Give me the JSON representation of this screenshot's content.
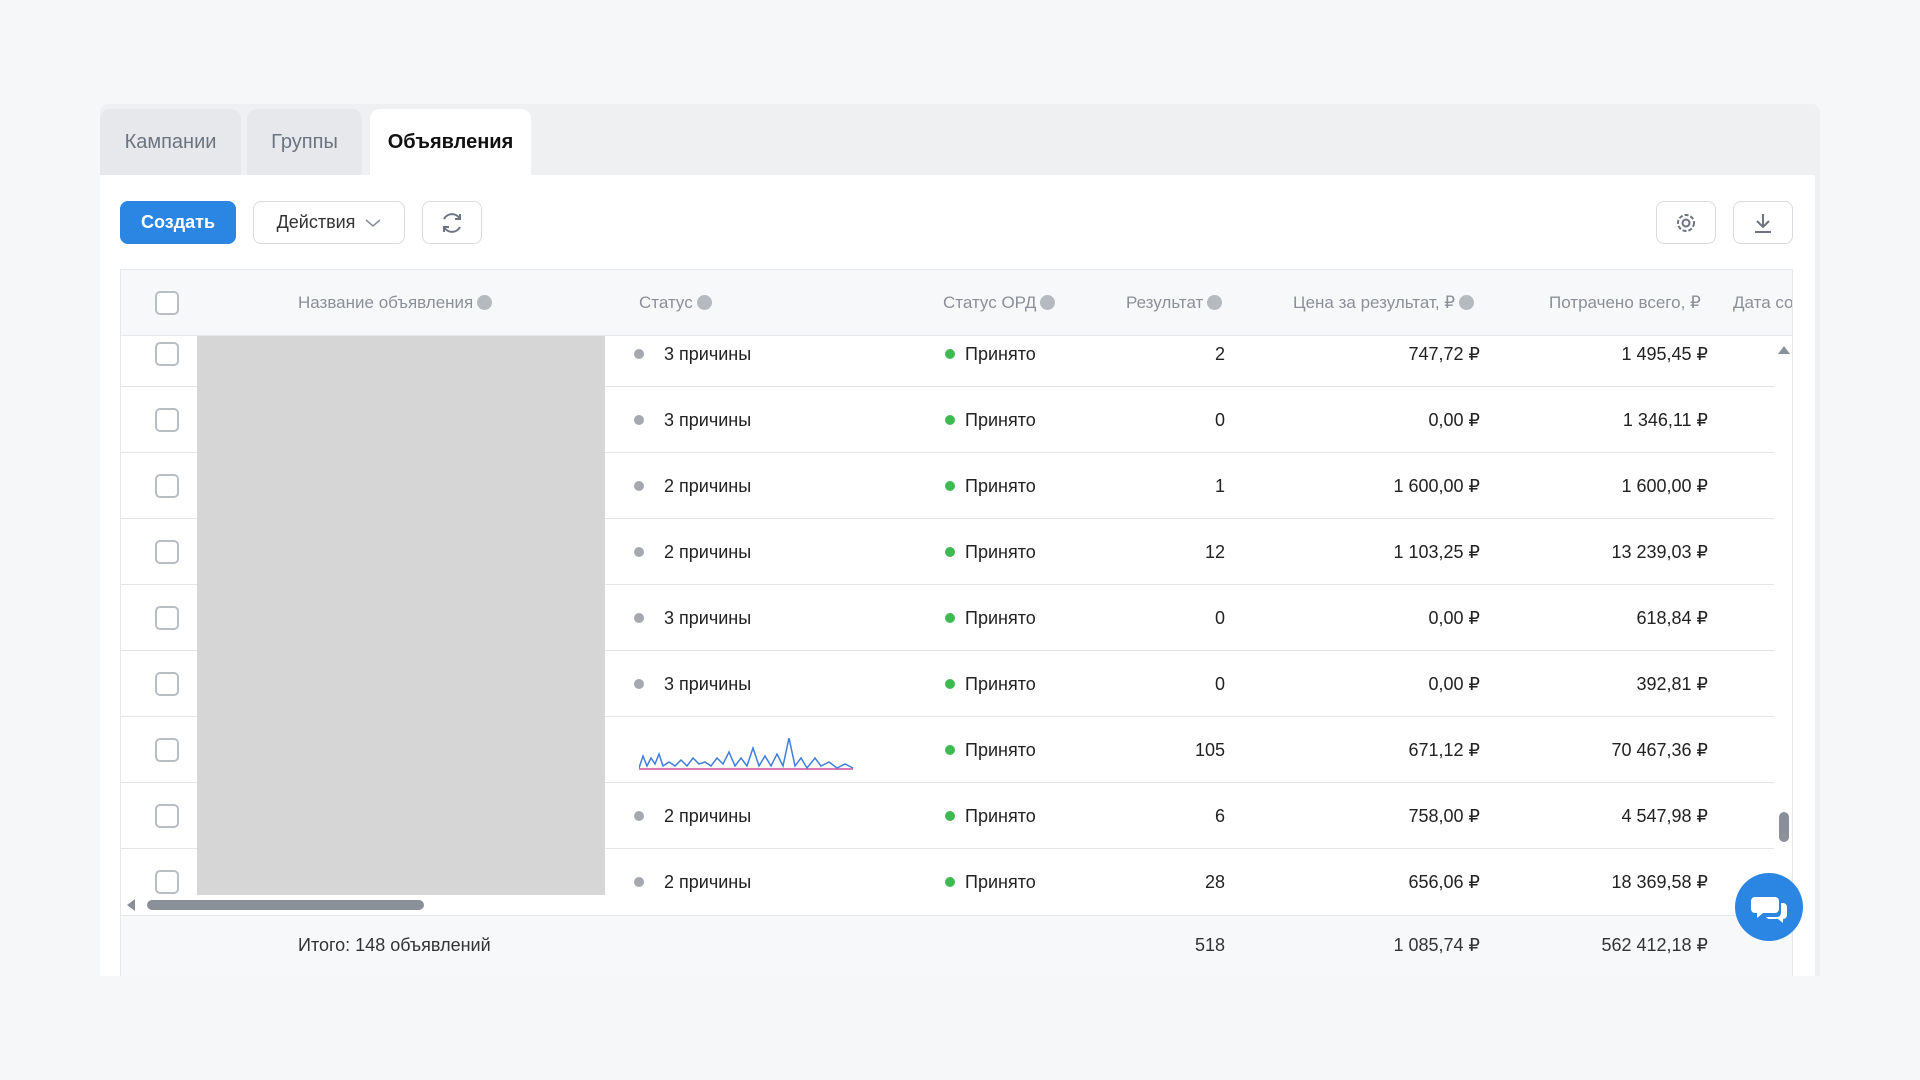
{
  "tabs": [
    "Кампании",
    "Группы",
    "Объявления"
  ],
  "toolbar": {
    "create": "Создать",
    "actions": "Действия"
  },
  "table": {
    "headers": [
      "Название объявления",
      "Статус",
      "Статус ОРД",
      "Результат",
      "Цена за результат, ₽",
      "Потрачено всего, ₽",
      "Дата со"
    ],
    "rows": [
      {
        "status": "3 причины",
        "ord": "Принято",
        "result": 2,
        "price": "747,72 ₽",
        "spent": "1 495,45 ₽"
      },
      {
        "status": "3 причины",
        "ord": "Принято",
        "result": 0,
        "price": "0,00 ₽",
        "spent": "1 346,11 ₽"
      },
      {
        "status": "2 причины",
        "ord": "Принято",
        "result": 1,
        "price": "1 600,00 ₽",
        "spent": "1 600,00 ₽"
      },
      {
        "status": "2 причины",
        "ord": "Принято",
        "result": 12,
        "price": "1 103,25 ₽",
        "spent": "13 239,03 ₽"
      },
      {
        "status": "3 причины",
        "ord": "Принято",
        "result": 0,
        "price": "0,00 ₽",
        "spent": "618,84 ₽"
      },
      {
        "status": "3 причины",
        "ord": "Принято",
        "result": 0,
        "price": "0,00 ₽",
        "spent": "392,81 ₽"
      },
      {
        "ord": "Принято",
        "result": 105,
        "price": "671,12 ₽",
        "spent": "70 467,36 ₽"
      },
      {
        "status": "2 причины",
        "ord": "Принято",
        "result": 6,
        "price": "758,00 ₽",
        "spent": "4 547,98 ₽"
      },
      {
        "status": "2 причины",
        "ord": "Принято",
        "result": 28,
        "price": "656,06 ₽",
        "spent": "18 369,58 ₽"
      }
    ],
    "totals": {
      "label": "Итого: 148 объявлений",
      "result": 518,
      "price": "1 085,74 ₽",
      "spent": "562 412,18 ₽"
    }
  }
}
